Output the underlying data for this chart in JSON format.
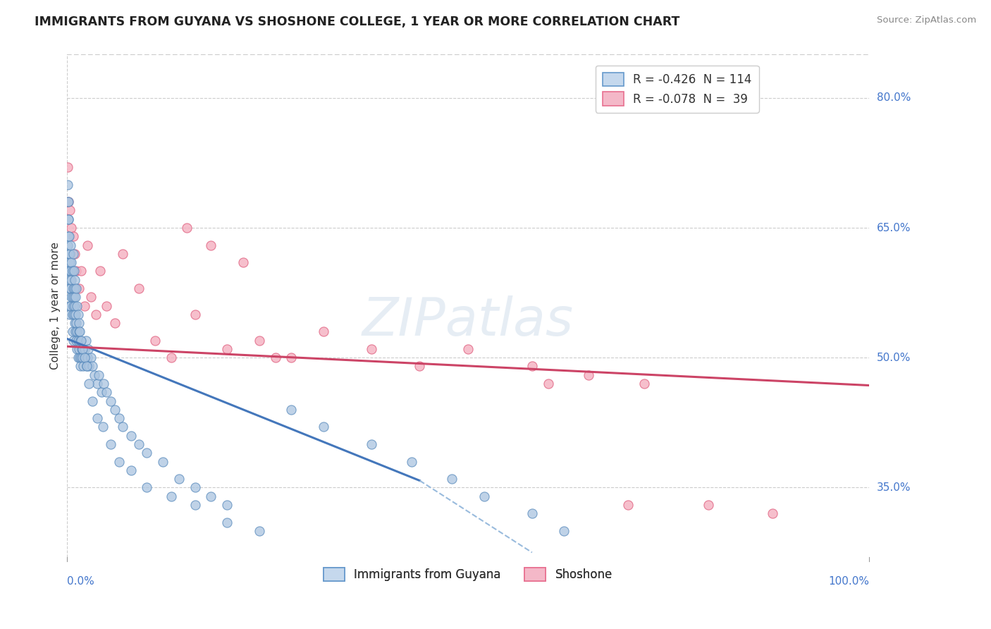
{
  "title": "IMMIGRANTS FROM GUYANA VS SHOSHONE COLLEGE, 1 YEAR OR MORE CORRELATION CHART",
  "source_text": "Source: ZipAtlas.com",
  "ylabel": "College, 1 year or more",
  "xlim": [
    0.0,
    1.0
  ],
  "ylim": [
    0.27,
    0.85
  ],
  "yticks": [
    0.35,
    0.5,
    0.65,
    0.8
  ],
  "ytick_labels": [
    "35.0%",
    "50.0%",
    "65.0%",
    "80.0%"
  ],
  "xtick_left_label": "0.0%",
  "xtick_right_label": "100.0%",
  "grid_color": "#cccccc",
  "background_color": "#ffffff",
  "blue_scatter": {
    "color": "#aac4e0",
    "edge_color": "#5588bb",
    "x": [
      0.001,
      0.001,
      0.002,
      0.002,
      0.002,
      0.003,
      0.003,
      0.003,
      0.003,
      0.004,
      0.004,
      0.004,
      0.005,
      0.005,
      0.005,
      0.006,
      0.006,
      0.007,
      0.007,
      0.007,
      0.008,
      0.008,
      0.008,
      0.009,
      0.009,
      0.01,
      0.01,
      0.01,
      0.011,
      0.011,
      0.012,
      0.012,
      0.013,
      0.013,
      0.014,
      0.014,
      0.015,
      0.015,
      0.016,
      0.017,
      0.017,
      0.018,
      0.019,
      0.02,
      0.021,
      0.022,
      0.023,
      0.024,
      0.025,
      0.026,
      0.027,
      0.028,
      0.03,
      0.032,
      0.035,
      0.038,
      0.04,
      0.043,
      0.046,
      0.05,
      0.055,
      0.06,
      0.065,
      0.07,
      0.08,
      0.09,
      0.1,
      0.12,
      0.14,
      0.16,
      0.18,
      0.2,
      0.001,
      0.001,
      0.002,
      0.002,
      0.003,
      0.004,
      0.005,
      0.006,
      0.007,
      0.008,
      0.009,
      0.01,
      0.011,
      0.012,
      0.013,
      0.014,
      0.015,
      0.016,
      0.018,
      0.02,
      0.022,
      0.025,
      0.028,
      0.032,
      0.038,
      0.045,
      0.055,
      0.065,
      0.08,
      0.1,
      0.13,
      0.16,
      0.2,
      0.24,
      0.28,
      0.32,
      0.38,
      0.43,
      0.48,
      0.52,
      0.58,
      0.62
    ],
    "y": [
      0.6,
      0.63,
      0.62,
      0.64,
      0.66,
      0.6,
      0.62,
      0.58,
      0.56,
      0.59,
      0.61,
      0.55,
      0.58,
      0.6,
      0.56,
      0.57,
      0.59,
      0.55,
      0.57,
      0.53,
      0.56,
      0.58,
      0.52,
      0.55,
      0.57,
      0.54,
      0.56,
      0.58,
      0.53,
      0.55,
      0.52,
      0.54,
      0.51,
      0.53,
      0.5,
      0.52,
      0.51,
      0.53,
      0.5,
      0.52,
      0.49,
      0.5,
      0.51,
      0.5,
      0.49,
      0.51,
      0.5,
      0.52,
      0.49,
      0.5,
      0.51,
      0.49,
      0.5,
      0.49,
      0.48,
      0.47,
      0.48,
      0.46,
      0.47,
      0.46,
      0.45,
      0.44,
      0.43,
      0.42,
      0.41,
      0.4,
      0.39,
      0.38,
      0.36,
      0.35,
      0.34,
      0.33,
      0.68,
      0.7,
      0.66,
      0.68,
      0.64,
      0.62,
      0.63,
      0.61,
      0.6,
      0.62,
      0.6,
      0.59,
      0.57,
      0.58,
      0.56,
      0.55,
      0.54,
      0.53,
      0.52,
      0.51,
      0.5,
      0.49,
      0.47,
      0.45,
      0.43,
      0.42,
      0.4,
      0.38,
      0.37,
      0.35,
      0.34,
      0.33,
      0.31,
      0.3,
      0.44,
      0.42,
      0.4,
      0.38,
      0.36,
      0.34,
      0.32,
      0.3
    ]
  },
  "pink_scatter": {
    "color": "#f4b0c0",
    "edge_color": "#e06080",
    "x": [
      0.001,
      0.002,
      0.004,
      0.006,
      0.008,
      0.01,
      0.012,
      0.015,
      0.018,
      0.022,
      0.026,
      0.03,
      0.036,
      0.042,
      0.05,
      0.06,
      0.07,
      0.09,
      0.11,
      0.13,
      0.16,
      0.2,
      0.24,
      0.28,
      0.32,
      0.38,
      0.44,
      0.5,
      0.58,
      0.65,
      0.72,
      0.8,
      0.88,
      0.15,
      0.18,
      0.22,
      0.26,
      0.6,
      0.7
    ],
    "y": [
      0.72,
      0.68,
      0.67,
      0.65,
      0.64,
      0.62,
      0.6,
      0.58,
      0.6,
      0.56,
      0.63,
      0.57,
      0.55,
      0.6,
      0.56,
      0.54,
      0.62,
      0.58,
      0.52,
      0.5,
      0.55,
      0.51,
      0.52,
      0.5,
      0.53,
      0.51,
      0.49,
      0.51,
      0.49,
      0.48,
      0.47,
      0.33,
      0.32,
      0.65,
      0.63,
      0.61,
      0.5,
      0.47,
      0.33
    ]
  },
  "blue_line": {
    "x_start": 0.0,
    "y_start": 0.522,
    "x_end_solid": 0.44,
    "y_end_solid": 0.358,
    "x_end_dash": 0.58,
    "y_end_dash": 0.275,
    "color": "#4477bb",
    "dash_color": "#99bbdd"
  },
  "pink_line": {
    "x_start": 0.0,
    "y_start": 0.513,
    "x_end": 1.0,
    "y_end": 0.468,
    "color": "#cc4466"
  },
  "legend": {
    "blue_label": "R = -0.426  N = 114",
    "pink_label": "R = -0.078  N =  39",
    "blue_fill": "#c5d8ed",
    "pink_fill": "#f4b8c8",
    "blue_edge": "#6699cc",
    "pink_edge": "#e87090"
  },
  "bottom_legend": {
    "blue_label": "Immigrants from Guyana",
    "pink_label": "Shoshone"
  }
}
